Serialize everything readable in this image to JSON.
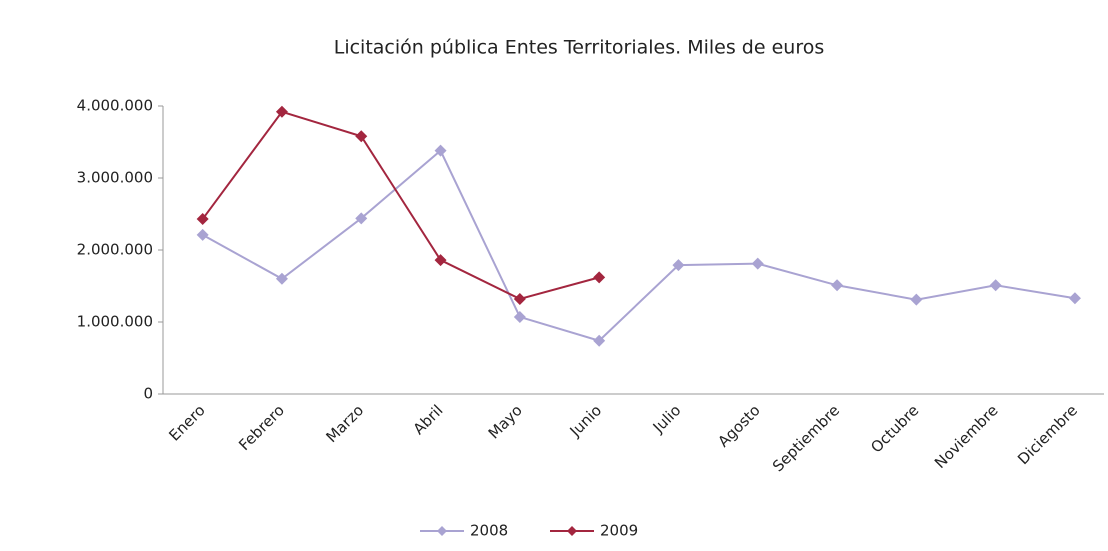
{
  "chart_data": {
    "type": "line",
    "title": "Licitación pública Entes Territoriales. Miles de euros",
    "categories": [
      "Enero",
      "Febrero",
      "Marzo",
      "Abril",
      "Mayo",
      "Junio",
      "Julio",
      "Agosto",
      "Septiembre",
      "Octubre",
      "Noviembre",
      "Diciembre"
    ],
    "series": [
      {
        "name": "2008",
        "color": "#a9a3d2",
        "values": [
          2210000,
          1600000,
          2440000,
          3380000,
          1070000,
          740000,
          1790000,
          1810000,
          1510000,
          1310000,
          1510000,
          1330000
        ]
      },
      {
        "name": "2009",
        "color": "#a3263f",
        "values": [
          2430000,
          3920000,
          3580000,
          1860000,
          1320000,
          1620000,
          null,
          null,
          null,
          null,
          null,
          null
        ]
      }
    ],
    "ylim": [
      0,
      4000000
    ],
    "yticks": [
      0,
      {
        "value": 1000000,
        "label": "1.000.000"
      },
      {
        "value": 2000000,
        "label": "2.000.000"
      },
      {
        "value": 3000000,
        "label": "3.000.000"
      },
      {
        "value": 4000000,
        "label": "4.000.000"
      }
    ],
    "legend": "bottom"
  }
}
